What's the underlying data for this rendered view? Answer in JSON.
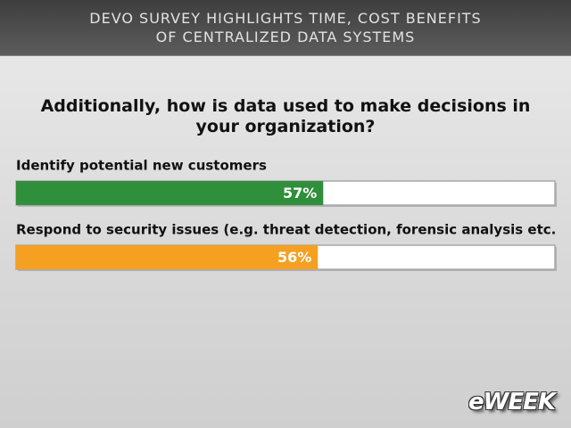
{
  "chart_data": {
    "type": "bar",
    "orientation": "horizontal",
    "title": "DEVO SURVEY HIGHLIGHTS TIME, COST BENEFITS OF CENTRALIZED DATA SYSTEMS",
    "subtitle": "Additionally, how is data used to make decisions in your organization?",
    "categories": [
      "Identify potential new customers",
      "Respond to security issues (e.g. threat detection, forensic analysis etc."
    ],
    "values": [
      57,
      56
    ],
    "value_labels": [
      "57%",
      "56%"
    ],
    "colors": [
      "#2f8f3a",
      "#f5a021"
    ],
    "xlim": [
      0,
      100
    ]
  },
  "logo": "eWEEK"
}
